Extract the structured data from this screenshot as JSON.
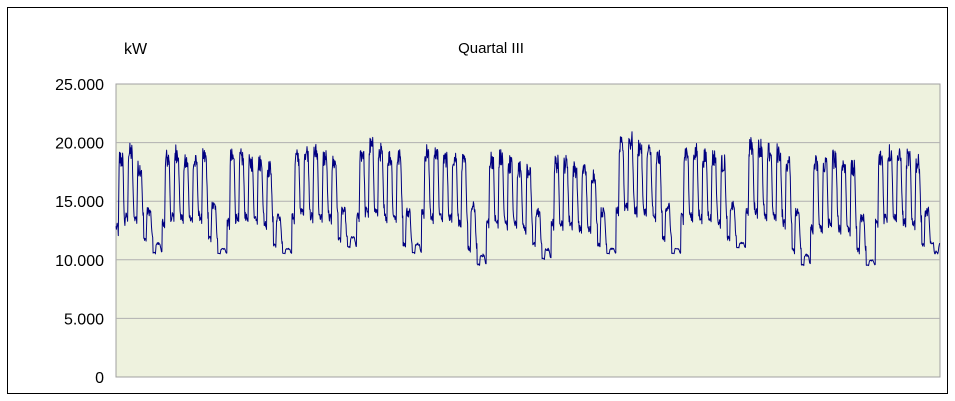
{
  "chart_data": {
    "type": "line",
    "title": "Quartal III",
    "ylabel": "kW",
    "xlabel": "",
    "ylim": [
      0,
      25000
    ],
    "yticks": [
      {
        "value": 0,
        "label": "0"
      },
      {
        "value": 5000,
        "label": "5.000"
      },
      {
        "value": 10000,
        "label": "10.000"
      },
      {
        "value": 15000,
        "label": "15.000"
      },
      {
        "value": 20000,
        "label": "20.000"
      },
      {
        "value": 25000,
        "label": "25.000"
      }
    ],
    "grid": "horizontal",
    "legend": "none",
    "series": [
      {
        "color": "#000080",
        "day_max": [
          19.5,
          20.0,
          18.5,
          14.5,
          11.5,
          19.5,
          20.0,
          19.0,
          19.0,
          19.5,
          15.0,
          11.0,
          19.5,
          19.5,
          19.0,
          19.0,
          18.5,
          14.0,
          11.0,
          19.5,
          20.0,
          20.0,
          19.5,
          19.0,
          14.5,
          12.0,
          20.0,
          20.5,
          20.0,
          19.5,
          19.5,
          14.5,
          11.5,
          20.0,
          20.0,
          19.5,
          19.5,
          19.0,
          15.0,
          10.5,
          19.5,
          19.5,
          19.0,
          18.5,
          18.5,
          14.5,
          11.0,
          19.0,
          19.0,
          18.5,
          18.5,
          18.0,
          14.5,
          11.0,
          20.5,
          21.0,
          20.5,
          20.0,
          19.5,
          15.0,
          11.0,
          20.0,
          20.0,
          19.5,
          19.5,
          19.0,
          15.0,
          11.5,
          20.5,
          20.5,
          20.0,
          20.0,
          19.0,
          14.5,
          10.5,
          19.0,
          19.0,
          19.5,
          19.0,
          18.5,
          14.0,
          10.0,
          19.5,
          20.0,
          19.5,
          19.5,
          19.0,
          14.5,
          10.5
        ],
        "day_min": [
          12.0,
          13.0,
          13.0,
          11.5,
          10.5,
          12.5,
          13.0,
          13.0,
          13.0,
          13.0,
          11.5,
          10.5,
          12.5,
          13.0,
          13.0,
          13.0,
          12.5,
          11.0,
          10.5,
          13.0,
          13.5,
          13.0,
          13.0,
          13.0,
          11.5,
          11.0,
          13.0,
          13.5,
          13.5,
          13.0,
          13.0,
          11.0,
          10.5,
          13.5,
          13.0,
          13.0,
          13.0,
          12.5,
          10.5,
          9.5,
          12.5,
          12.5,
          12.5,
          12.5,
          12.0,
          11.0,
          10.0,
          12.5,
          12.5,
          12.5,
          12.0,
          12.0,
          11.0,
          10.5,
          13.5,
          14.0,
          13.5,
          13.5,
          13.0,
          11.5,
          10.5,
          13.0,
          13.0,
          13.0,
          13.0,
          12.5,
          11.5,
          11.0,
          13.5,
          13.5,
          13.0,
          13.0,
          12.5,
          10.5,
          9.5,
          12.0,
          12.0,
          12.5,
          12.0,
          12.0,
          10.5,
          9.5,
          12.5,
          13.0,
          13.0,
          12.5,
          12.5,
          11.0,
          11.5
        ],
        "value_unit_multiplier": 1000
      }
    ]
  }
}
